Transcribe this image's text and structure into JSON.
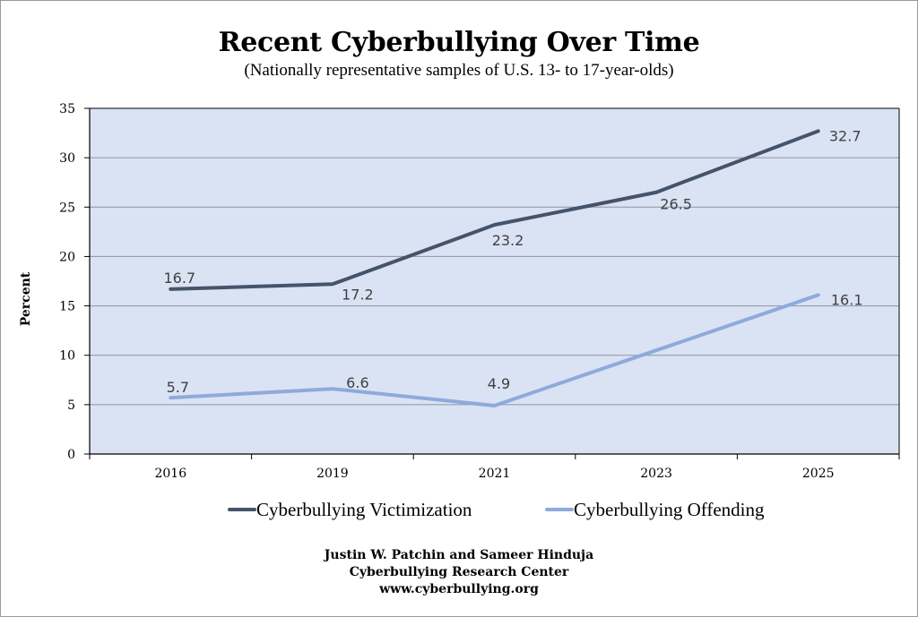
{
  "chart_data": {
    "type": "line",
    "title": "Recent Cyberbullying Over Time",
    "subtitle": "(Nationally representative samples of U.S. 13- to 17-year-olds)",
    "ylabel": "Percent",
    "xlabel": "",
    "categories": [
      "2016",
      "2019",
      "2021",
      "2023",
      "2025"
    ],
    "ylim": [
      0,
      35
    ],
    "yticks": [
      0,
      5,
      10,
      15,
      20,
      25,
      30,
      35
    ],
    "grid": true,
    "legend_position": "bottom",
    "series": [
      {
        "name": "Cyberbullying Victimization",
        "color": "#44546a",
        "values": [
          16.7,
          17.2,
          23.2,
          26.5,
          32.7
        ],
        "labels": [
          "16.7",
          "17.2",
          "23.2",
          "26.5",
          "32.7"
        ]
      },
      {
        "name": "Cyberbullying Offending",
        "color": "#8eaadb",
        "values": [
          5.7,
          6.6,
          4.9,
          10.5,
          16.1
        ],
        "labels": [
          "5.7",
          "6.6",
          "4.9",
          "",
          "16.1"
        ]
      }
    ],
    "plot_background": "#dae3f3",
    "gridline_color": "#8a94a6"
  },
  "credits": {
    "line1": "Justin W. Patchin and Sameer Hinduja",
    "line2": "Cyberbullying Research Center",
    "line3": "www.cyberbullying.org"
  }
}
